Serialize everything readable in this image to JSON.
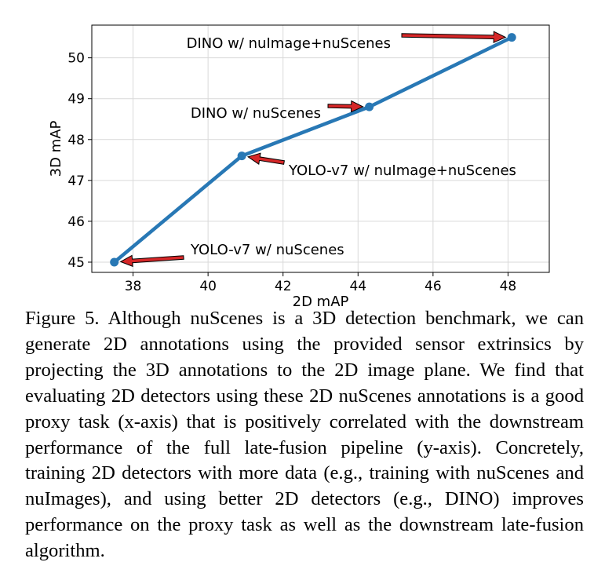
{
  "chart_data": {
    "type": "line",
    "title": "",
    "xlabel": "2D mAP",
    "ylabel": "3D mAP",
    "xlim": [
      36.9,
      49.1
    ],
    "ylim": [
      44.75,
      50.8
    ],
    "xticks": [
      38,
      40,
      42,
      44,
      46,
      48
    ],
    "yticks": [
      45,
      46,
      47,
      48,
      49,
      50
    ],
    "grid": true,
    "color": "#2878b5",
    "arrow_color": "#d62728",
    "points": [
      {
        "x": 37.5,
        "y": 45.0,
        "label": "YOLO-v7 w/ nuScenes"
      },
      {
        "x": 40.9,
        "y": 47.6,
        "label": "YOLO-v7 w/ nuImage+nuScenes"
      },
      {
        "x": 44.3,
        "y": 48.8,
        "label": "DINO w/ nuScenes"
      },
      {
        "x": 48.1,
        "y": 50.5,
        "label": "DINO w/ nuImage+nuScenes"
      }
    ]
  },
  "caption": {
    "label": "Figure 5.",
    "text": "Although nuScenes is a 3D detection benchmark, we can generate 2D annotations using the provided sensor extrinsics by projecting the 3D annotations to the 2D image plane. We find that evaluating 2D detectors using these 2D nuScenes annotations is a good proxy task (x-axis) that is positively correlated with the downstream performance of the full late-fusion pipeline (y-axis). Concretely, training 2D detectors with more data (e.g., training with nuScenes and nuImages), and using better 2D detectors (e.g., DINO) improves performance on the proxy task as well as the downstream late-fusion algorithm."
  }
}
